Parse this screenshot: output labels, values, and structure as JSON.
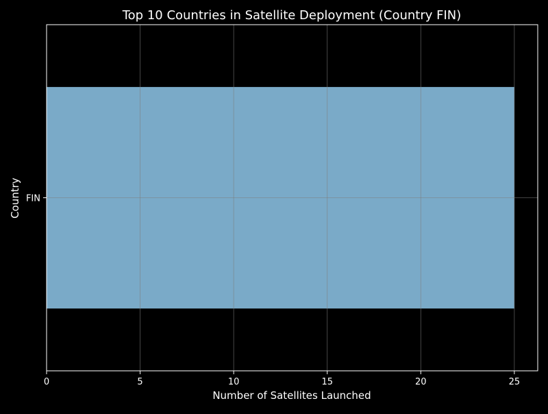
{
  "chart_data": {
    "type": "bar",
    "orientation": "horizontal",
    "title": "Top 10 Countries in Satellite Deployment (Country FIN)",
    "xlabel": "Number of Satellites Launched",
    "ylabel": "Country",
    "categories": [
      "FIN"
    ],
    "values": [
      25
    ],
    "xlim": [
      0,
      26.25
    ],
    "xticks": [
      0,
      5,
      10,
      15,
      20,
      25
    ],
    "grid": true,
    "legend": false,
    "colors": {
      "background": "#000000",
      "bar": "#7aaac8",
      "axes": "#ffffff",
      "grid": "#7f7f7f",
      "text": "#ffffff"
    }
  }
}
